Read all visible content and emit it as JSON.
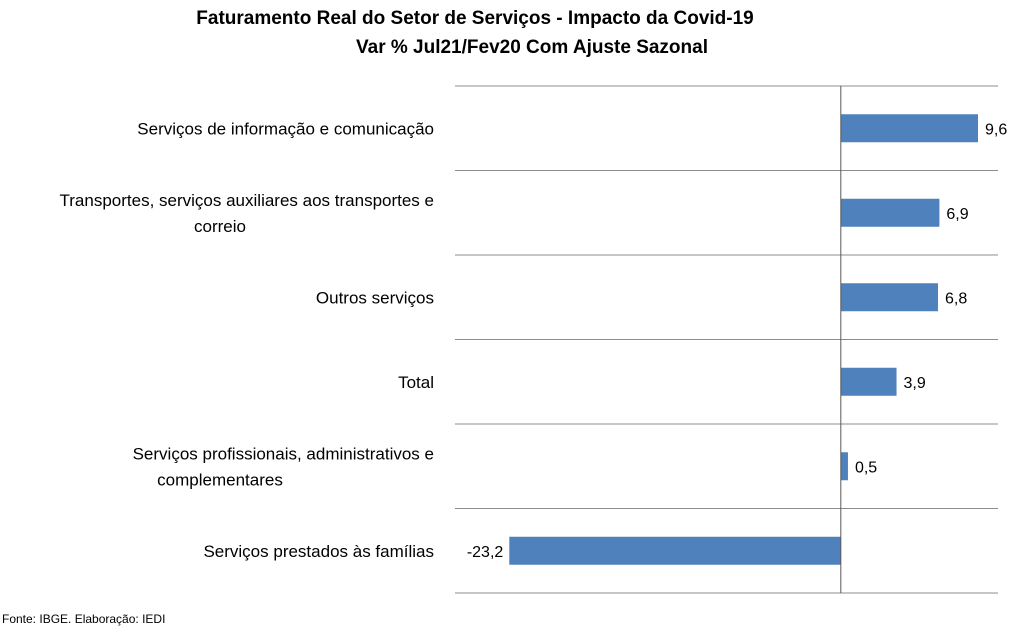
{
  "chart_data": {
    "type": "bar",
    "orientation": "horizontal",
    "title": "Faturamento Real do Setor de Serviços - Impacto da Covid-19",
    "subtitle": "Var % Jul21/Fev20 Com Ajuste Sazonal",
    "categories": [
      [
        "Serviços de informação e comunicação"
      ],
      [
        "Transportes, serviços auxiliares aos transportes e",
        "correio"
      ],
      [
        "Outros serviços"
      ],
      [
        "Total"
      ],
      [
        "Serviços profissionais, administrativos e",
        "complementares"
      ],
      [
        "Serviços prestados às famílias"
      ]
    ],
    "values": [
      9.6,
      6.9,
      6.8,
      3.9,
      0.5,
      -23.2
    ],
    "data_labels": [
      "9,6",
      "6,9",
      "6,8",
      "3,9",
      "0,5",
      "-23,2"
    ],
    "xlim": [
      -27,
      11
    ],
    "grid": "horizontal separators",
    "bar_color": "#4f81bd"
  },
  "source": "Fonte: IBGE. Elaboração: IEDI"
}
